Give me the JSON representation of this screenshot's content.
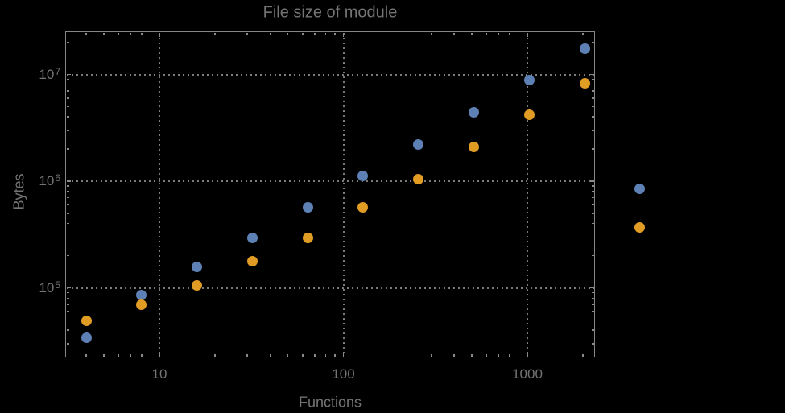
{
  "title": "File size of module",
  "x_axis": {
    "label": "Functions",
    "tick_labels": [
      "10",
      "100",
      "1000"
    ],
    "tick_values": [
      10,
      100,
      1000
    ]
  },
  "y_axis": {
    "label": "Bytes",
    "tick_labels": [
      {
        "base": "10",
        "exp": "5"
      },
      {
        "base": "10",
        "exp": "6"
      },
      {
        "base": "10",
        "exp": "7"
      }
    ],
    "tick_values": [
      100000,
      1000000,
      10000000
    ]
  },
  "colors": {
    "background": "#000000",
    "frame": "#868686",
    "gridline": "#7a7a7a",
    "text": "#747474",
    "series_blue": "#5E81B5",
    "series_orange": "#E19C24"
  },
  "chart_data": {
    "type": "scatter",
    "title": "File size of module",
    "xlabel": "Functions",
    "ylabel": "Bytes",
    "x_scale": "log10",
    "y_scale": "log10",
    "xlim": [
      3.1,
      2330
    ],
    "ylim": [
      22000,
      25000000
    ],
    "grid": "dotted lines at powers of 10, both axes",
    "legend": "none",
    "x": [
      4,
      8,
      16,
      32,
      64,
      128,
      256,
      512,
      1024,
      2048,
      4096
    ],
    "series": [
      {
        "name": "series-1-blue",
        "color": "#5E81B5",
        "values": [
          34000,
          86000,
          156000,
          296000,
          565000,
          1120000,
          2200000,
          4400000,
          8800000,
          17500000,
          850000
        ]
      },
      {
        "name": "series-2-orange",
        "color": "#E19C24",
        "values": [
          49000,
          69000,
          106000,
          176000,
          296000,
          570000,
          1050000,
          2100000,
          4200000,
          8300000,
          370000
        ]
      }
    ],
    "note": "last x (4096) points are drawn outside the right frame edge"
  }
}
